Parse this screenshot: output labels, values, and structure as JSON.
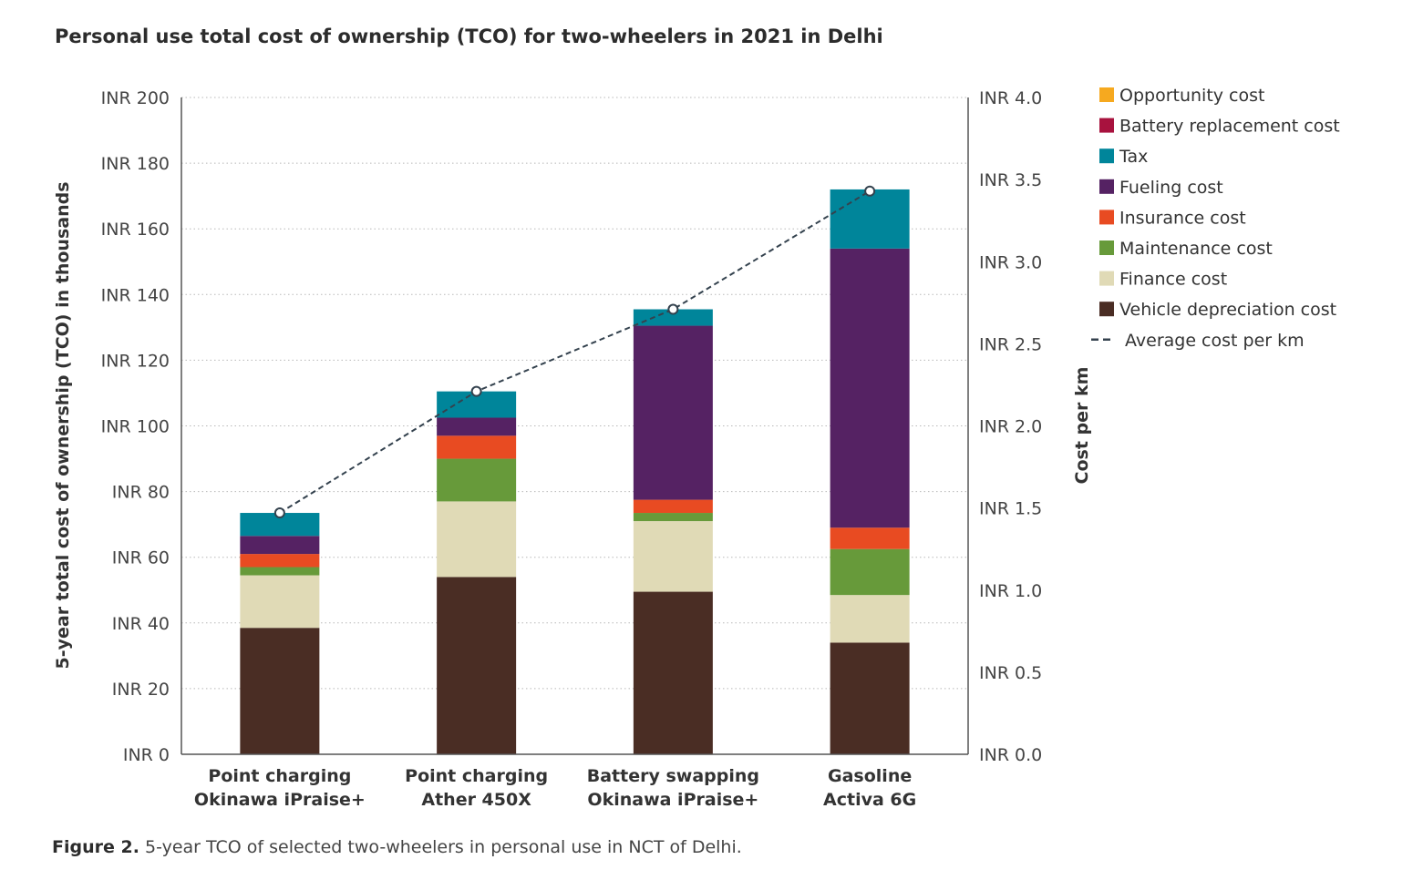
{
  "title": "Personal use total cost of ownership (TCO) for two-wheelers in 2021 in Delhi",
  "caption": {
    "label": "Figure 2.",
    "text": "5-year TCO of selected two-wheelers in personal use in NCT of Delhi."
  },
  "chart_data": {
    "type": "bar",
    "stacked": true,
    "ylabel": "5-year total cost of ownership (TCO) in thousands",
    "ylabel_right": "Cost per km",
    "ylim": [
      0,
      200
    ],
    "ylim_right": [
      0,
      4.0
    ],
    "y_ticks": [
      "INR 0",
      "INR 20",
      "INR 40",
      "INR 60",
      "INR 80",
      "INR 100",
      "INR 120",
      "INR 140",
      "INR 160",
      "INR 180",
      "INR 200"
    ],
    "y_ticks_right": [
      "INR 0.0",
      "INR 0.5",
      "INR 1.0",
      "INR 1.5",
      "INR 2.0",
      "INR 2.5",
      "INR 3.0",
      "INR 3.5",
      "INR 4.0"
    ],
    "grid": true,
    "legend_position": "right",
    "categories": [
      [
        "Point charging",
        "Okinawa iPraise+"
      ],
      [
        "Point charging",
        "Ather 450X"
      ],
      [
        "Battery swapping",
        "Okinawa iPraise+"
      ],
      [
        "Gasoline",
        "Activa 6G"
      ]
    ],
    "series": [
      {
        "name": "Vehicle depreciation cost",
        "color": "#4a2d24",
        "values": [
          38.5,
          54,
          49.5,
          34
        ]
      },
      {
        "name": "Finance cost",
        "color": "#e0dab6",
        "values": [
          16,
          23,
          21.5,
          14.5
        ]
      },
      {
        "name": "Maintenance cost",
        "color": "#679a3a",
        "values": [
          2.5,
          13,
          2.5,
          14
        ]
      },
      {
        "name": "Insurance cost",
        "color": "#e84b22",
        "values": [
          4,
          7,
          4,
          6.5
        ]
      },
      {
        "name": "Fueling cost",
        "color": "#552263",
        "values": [
          5.5,
          5.5,
          53,
          85
        ]
      },
      {
        "name": "Tax",
        "color": "#00859a",
        "values": [
          7,
          8,
          5,
          18
        ]
      },
      {
        "name": "Battery replacement cost",
        "color": "#a8123e",
        "values": [
          0,
          0,
          0,
          0
        ]
      },
      {
        "name": "Opportunity cost",
        "color": "#f6a91f",
        "values": [
          0,
          0,
          0,
          0
        ]
      }
    ],
    "line_series": {
      "name": "Average cost per km",
      "axis": "right",
      "color": "#34424e",
      "values": [
        1.47,
        2.21,
        2.71,
        3.43
      ]
    },
    "legend_order": [
      "Opportunity cost",
      "Battery replacement cost",
      "Tax",
      "Fueling cost",
      "Insurance cost",
      "Maintenance cost",
      "Finance cost",
      "Vehicle depreciation cost",
      "Average cost per km"
    ]
  }
}
